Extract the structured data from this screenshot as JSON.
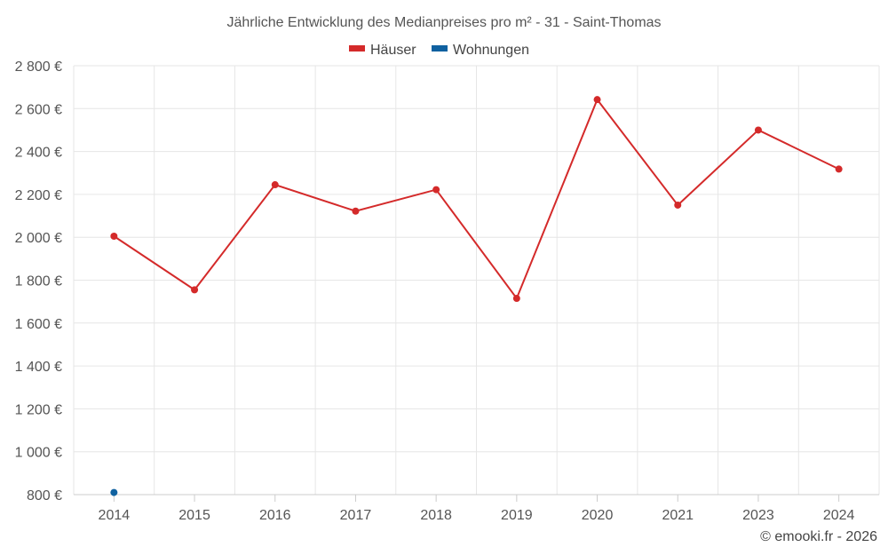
{
  "chart_data": {
    "type": "line",
    "title": "Jährliche Entwicklung des Medianpreises pro m² - 31 - Saint-Thomas",
    "categories": [
      "2014",
      "2015",
      "2016",
      "2017",
      "2018",
      "2019",
      "2020",
      "2021",
      "2023",
      "2024"
    ],
    "series": [
      {
        "name": "Häuser",
        "color": "#d42a2a",
        "values": [
          2005,
          1755,
          2245,
          2122,
          2222,
          1715,
          2642,
          2150,
          2500,
          2318
        ]
      },
      {
        "name": "Wohnungen",
        "color": "#0f61a0",
        "values": [
          810,
          null,
          null,
          null,
          null,
          null,
          null,
          null,
          null,
          null
        ]
      }
    ],
    "ylim": [
      800,
      2800
    ],
    "yticks": [
      800,
      1000,
      1200,
      1400,
      1600,
      1800,
      2000,
      2200,
      2400,
      2600,
      2800
    ],
    "ytick_labels": [
      "800 €",
      "1 000 €",
      "1 200 €",
      "1 400 €",
      "1 600 €",
      "1 800 €",
      "2 000 €",
      "2 200 €",
      "2 400 €",
      "2 600 €",
      "2 800 €"
    ],
    "xlabel": "",
    "ylabel": "",
    "grid": true,
    "legend_position": "top-center"
  },
  "credit": "© emooki.fr - 2026"
}
